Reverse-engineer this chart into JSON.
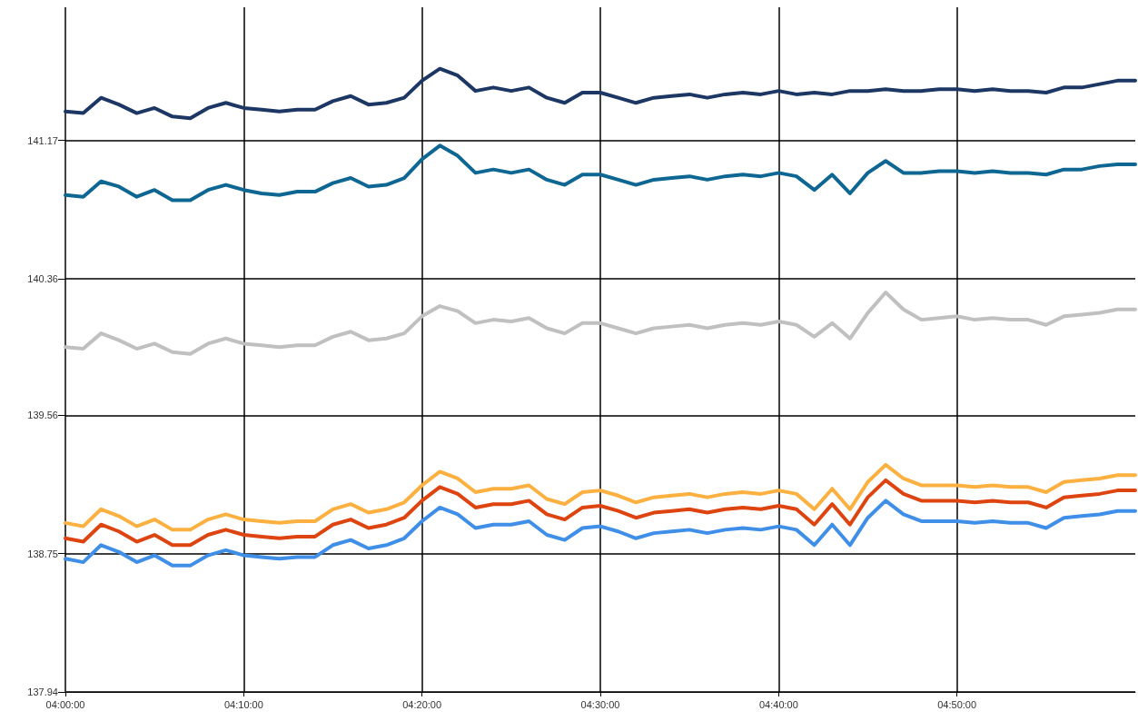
{
  "chart_data": {
    "type": "line",
    "x": [
      4,
      4.0167,
      4.0333,
      4.05,
      4.0667,
      4.0833,
      4.1,
      4.1167,
      4.1333,
      4.15,
      4.1667,
      4.1833,
      4.2,
      4.2167,
      4.2333,
      4.25,
      4.2667,
      4.2833,
      4.3,
      4.3167,
      4.3333,
      4.35,
      4.3667,
      4.3833,
      4.4,
      4.4167,
      4.4333,
      4.45,
      4.4667,
      4.4833,
      4.5,
      4.5167,
      4.5333,
      4.55,
      4.5667,
      4.5833,
      4.6,
      4.6167,
      4.6333,
      4.65,
      4.6667,
      4.6833,
      4.7,
      4.7167,
      4.7333,
      4.75,
      4.7667,
      4.7833,
      4.8,
      4.8167,
      4.8333,
      4.85,
      4.8667,
      4.8833,
      4.9,
      4.9167,
      4.9333,
      4.95,
      4.9667,
      4.9833,
      5
    ],
    "series": [
      {
        "color": "#3f8fe8",
        "values": [
          138.72,
          138.7,
          138.8,
          138.76,
          138.7,
          138.74,
          138.68,
          138.68,
          138.74,
          138.77,
          138.74,
          138.73,
          138.72,
          138.73,
          138.73,
          138.8,
          138.83,
          138.78,
          138.8,
          138.84,
          138.94,
          139.02,
          138.98,
          138.9,
          138.92,
          138.92,
          138.94,
          138.86,
          138.83,
          138.9,
          138.91,
          138.88,
          138.84,
          138.87,
          138.88,
          138.89,
          138.87,
          138.89,
          138.9,
          138.89,
          138.91,
          138.89,
          138.8,
          138.92,
          138.8,
          138.96,
          139.06,
          138.98,
          138.94,
          138.94,
          138.94,
          138.93,
          138.94,
          138.93,
          138.93,
          138.9,
          138.96,
          138.97,
          138.98,
          139.0,
          139.0
        ]
      },
      {
        "color": "#fbb040",
        "values": [
          138.93,
          138.91,
          139.01,
          138.97,
          138.91,
          138.95,
          138.89,
          138.89,
          138.95,
          138.98,
          138.95,
          138.94,
          138.93,
          138.94,
          138.94,
          139.01,
          139.04,
          138.99,
          139.01,
          139.05,
          139.15,
          139.23,
          139.19,
          139.11,
          139.13,
          139.13,
          139.15,
          139.07,
          139.04,
          139.11,
          139.12,
          139.09,
          139.05,
          139.08,
          139.09,
          139.1,
          139.08,
          139.1,
          139.11,
          139.1,
          139.12,
          139.1,
          139.01,
          139.13,
          139.01,
          139.17,
          139.27,
          139.19,
          139.15,
          139.15,
          139.15,
          139.14,
          139.15,
          139.14,
          139.14,
          139.11,
          139.17,
          139.18,
          139.19,
          139.21,
          139.21
        ]
      },
      {
        "color": "#dd4410",
        "values": [
          138.84,
          138.82,
          138.92,
          138.88,
          138.82,
          138.86,
          138.8,
          138.8,
          138.86,
          138.89,
          138.86,
          138.85,
          138.84,
          138.85,
          138.85,
          138.92,
          138.95,
          138.9,
          138.92,
          138.96,
          139.06,
          139.14,
          139.1,
          139.02,
          139.04,
          139.04,
          139.06,
          138.98,
          138.95,
          139.02,
          139.03,
          139.0,
          138.96,
          138.99,
          139.0,
          139.01,
          138.99,
          139.01,
          139.02,
          139.01,
          139.03,
          139.01,
          138.92,
          139.04,
          138.92,
          139.08,
          139.18,
          139.1,
          139.06,
          139.06,
          139.06,
          139.05,
          139.06,
          139.05,
          139.05,
          139.02,
          139.08,
          139.09,
          139.1,
          139.12,
          139.12
        ]
      },
      {
        "color": "#0e6792",
        "values": [
          140.85,
          140.84,
          140.93,
          140.9,
          140.84,
          140.88,
          140.82,
          140.82,
          140.88,
          140.91,
          140.88,
          140.86,
          140.85,
          140.87,
          140.87,
          140.92,
          140.95,
          140.9,
          140.91,
          140.95,
          141.06,
          141.14,
          141.08,
          140.98,
          141.0,
          140.98,
          141.0,
          140.94,
          140.91,
          140.97,
          140.97,
          140.94,
          140.91,
          140.94,
          140.95,
          140.96,
          140.94,
          140.96,
          140.97,
          140.96,
          140.98,
          140.96,
          140.88,
          140.97,
          140.86,
          140.98,
          141.05,
          140.98,
          140.98,
          140.99,
          140.99,
          140.98,
          140.99,
          140.98,
          140.98,
          140.97,
          141.0,
          141.0,
          141.02,
          141.03,
          141.03
        ]
      },
      {
        "color": "#c0c0c0",
        "values": [
          139.96,
          139.95,
          140.04,
          140.0,
          139.95,
          139.98,
          139.93,
          139.92,
          139.98,
          140.01,
          139.98,
          139.97,
          139.96,
          139.97,
          139.97,
          140.02,
          140.05,
          140.0,
          140.01,
          140.04,
          140.14,
          140.2,
          140.17,
          140.1,
          140.12,
          140.11,
          140.13,
          140.07,
          140.04,
          140.1,
          140.1,
          140.07,
          140.04,
          140.07,
          140.08,
          140.09,
          140.07,
          140.09,
          140.1,
          140.09,
          140.11,
          140.09,
          140.02,
          140.1,
          140.01,
          140.16,
          140.28,
          140.18,
          140.12,
          140.13,
          140.14,
          140.12,
          140.13,
          140.12,
          140.12,
          140.09,
          140.14,
          140.15,
          140.16,
          140.18,
          140.18
        ]
      },
      {
        "color": "#1c3764",
        "values": [
          141.34,
          141.33,
          141.42,
          141.38,
          141.33,
          141.36,
          141.31,
          141.3,
          141.36,
          141.39,
          141.36,
          141.35,
          141.34,
          141.35,
          141.35,
          141.4,
          141.43,
          141.38,
          141.39,
          141.42,
          141.52,
          141.59,
          141.55,
          141.46,
          141.48,
          141.46,
          141.48,
          141.42,
          141.39,
          141.45,
          141.45,
          141.42,
          141.39,
          141.42,
          141.43,
          141.44,
          141.42,
          141.44,
          141.45,
          141.44,
          141.46,
          141.44,
          141.45,
          141.44,
          141.46,
          141.46,
          141.47,
          141.46,
          141.46,
          141.47,
          141.47,
          141.46,
          141.47,
          141.46,
          141.46,
          141.45,
          141.48,
          141.48,
          141.5,
          141.52,
          141.52
        ]
      }
    ],
    "xlim": [
      4,
      5
    ],
    "xticks": [
      {
        "value": 4,
        "label": "04:00:00"
      },
      {
        "value": 4.1667,
        "label": "04:10:00"
      },
      {
        "value": 4.3333,
        "label": "04:20:00"
      },
      {
        "value": 4.5,
        "label": "04:30:00"
      },
      {
        "value": 4.6667,
        "label": "04:40:00"
      },
      {
        "value": 4.8333,
        "label": "04:50:00"
      }
    ],
    "ylim": [
      137.94,
      141.95
    ],
    "yticks": [
      137.94,
      138.75,
      139.56,
      140.36,
      141.17
    ],
    "grid": true,
    "marker": "none",
    "line_style": "solid"
  }
}
